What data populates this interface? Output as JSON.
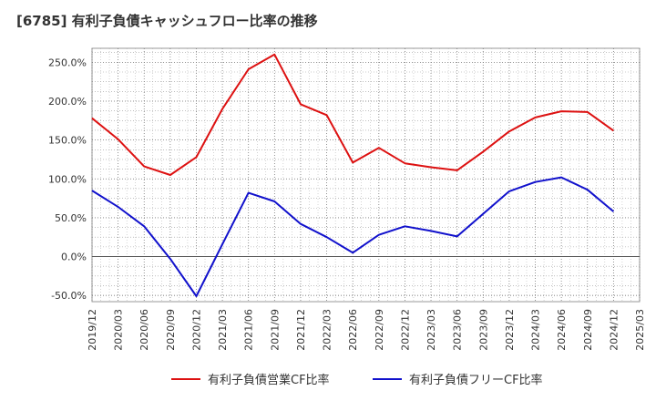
{
  "chart_data": {
    "type": "line",
    "title": "[6785]  有利子負債キャッシュフロー比率の推移",
    "x": [
      "2019/12",
      "2020/03",
      "2020/06",
      "2020/09",
      "2020/12",
      "2021/03",
      "2021/06",
      "2021/09",
      "2021/12",
      "2022/03",
      "2022/06",
      "2022/09",
      "2022/12",
      "2023/03",
      "2023/06",
      "2023/09",
      "2023/12",
      "2024/03",
      "2024/06",
      "2024/09",
      "2024/12"
    ],
    "x_ticks": [
      "2019/12",
      "2020/03",
      "2020/06",
      "2020/09",
      "2020/12",
      "2021/03",
      "2021/06",
      "2021/09",
      "2021/12",
      "2022/03",
      "2022/06",
      "2022/09",
      "2022/12",
      "2023/03",
      "2023/06",
      "2023/09",
      "2023/12",
      "2024/03",
      "2024/06",
      "2024/09",
      "2024/12",
      "2025/03"
    ],
    "y_ticks": [
      -50,
      0,
      50,
      100,
      150,
      200,
      250
    ],
    "y_tick_labels": [
      "-50.0%",
      "0.0%",
      "50.0%",
      "100.0%",
      "150.0%",
      "200.0%",
      "250.0%"
    ],
    "ylim": [
      -58,
      268
    ],
    "grid": true,
    "legend_position": "bottom",
    "series": [
      {
        "name": "有利子負債営業CF比率",
        "color": "#dd1111",
        "values": [
          178,
          151,
          116,
          105,
          128,
          190,
          241,
          260,
          196,
          182,
          121,
          140,
          120,
          115,
          111,
          135,
          161,
          179,
          187,
          186,
          162
        ]
      },
      {
        "name": "有利子負債フリーCF比率",
        "color": "#1111cc",
        "values": [
          85,
          64,
          39,
          -3,
          -51,
          16,
          82,
          71,
          42,
          25,
          5,
          28,
          39,
          33,
          26,
          55,
          84,
          96,
          102,
          86,
          58
        ]
      }
    ]
  }
}
